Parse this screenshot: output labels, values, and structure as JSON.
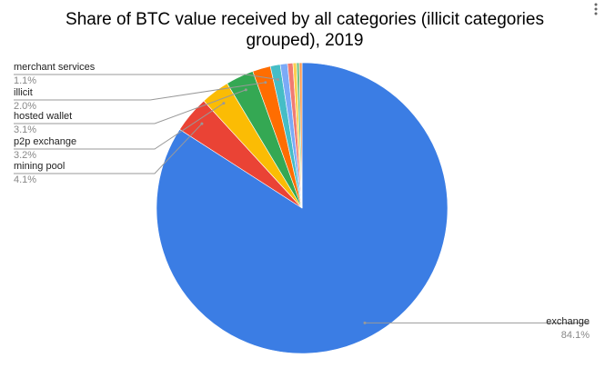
{
  "chart_data": {
    "type": "pie",
    "title": "Share of BTC value received by all categories (illicit categories grouped), 2019",
    "categories": [
      "exchange",
      "mining pool",
      "p2p exchange",
      "hosted wallet",
      "illicit",
      "merchant services",
      null,
      null,
      null,
      null,
      null
    ],
    "values": [
      84.1,
      4.1,
      3.2,
      3.1,
      2.0,
      1.1,
      0.8,
      0.6,
      0.4,
      0.3,
      0.3
    ],
    "value_labels": [
      "84.1%",
      "4.1%",
      "3.2%",
      "3.1%",
      "2.0%",
      "1.1%",
      null,
      null,
      null,
      null,
      null
    ],
    "colors": [
      "#3b7de4",
      "#ea4335",
      "#fbbc04",
      "#34a853",
      "#ff6d01",
      "#46bdc6",
      "#7baaf7",
      "#f07b72",
      "#fcd04f",
      "#71c287",
      "#ff994d"
    ]
  }
}
